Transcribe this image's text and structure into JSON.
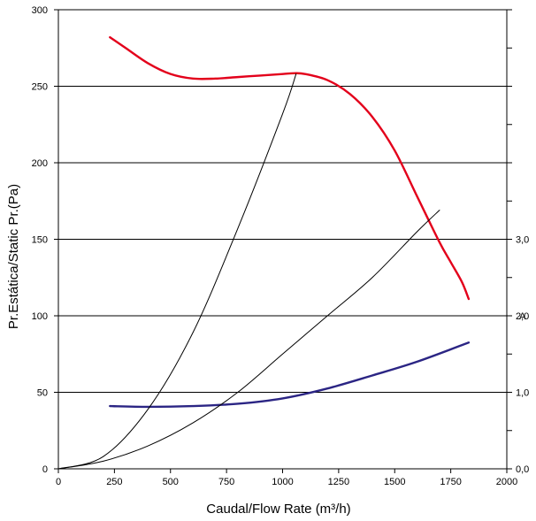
{
  "chart_data": {
    "type": "line",
    "xlabel": "Caudal/Flow Rate (m³/h)",
    "ylabel": "Pr.Estática/Static Pr.(Pa)",
    "xlim": [
      0,
      2000
    ],
    "ylim": [
      0,
      300
    ],
    "x_ticks": [
      0,
      250,
      500,
      750,
      1000,
      1250,
      1500,
      1750,
      2000
    ],
    "y_ticks": [
      0,
      50,
      100,
      150,
      200,
      250,
      300
    ],
    "grid": "horizontal",
    "right_axis": {
      "unit_label": "A",
      "range": [
        0,
        4
      ],
      "ticks": [
        {
          "value": 0,
          "label": "0,0"
        },
        {
          "value": 1,
          "label": "1,0"
        },
        {
          "value": 2,
          "label": "2,0"
        },
        {
          "value": 3,
          "label": "3,0"
        }
      ]
    },
    "series": [
      {
        "axis": "left",
        "color": "#e3001b",
        "x": [
          230,
          300,
          400,
          500,
          600,
          700,
          800,
          900,
          1000,
          1050,
          1100,
          1200,
          1300,
          1400,
          1500,
          1600,
          1700,
          1750,
          1800,
          1830
        ],
        "y": [
          282,
          275,
          265,
          258,
          255,
          255,
          256,
          257,
          258,
          258.5,
          258,
          254,
          245,
          230,
          208,
          178,
          148,
          135,
          122,
          111
        ]
      },
      {
        "axis": "right",
        "color": "#2b2584",
        "x": [
          230,
          400,
          600,
          800,
          1000,
          1200,
          1400,
          1600,
          1830
        ],
        "y": [
          0.82,
          0.81,
          0.82,
          0.85,
          0.92,
          1.05,
          1.22,
          1.4,
          1.65
        ]
      },
      {
        "axis": "left",
        "color": "#000000",
        "x": [
          0,
          200,
          400,
          600,
          800,
          1000,
          1060
        ],
        "y": [
          0,
          8,
          39,
          89,
          157,
          232,
          258
        ]
      },
      {
        "axis": "left",
        "color": "#000000",
        "x": [
          0,
          200,
          400,
          600,
          800,
          1000,
          1200,
          1400,
          1600,
          1700
        ],
        "y": [
          0,
          5,
          15,
          30,
          50,
          75,
          100,
          125,
          155,
          169
        ]
      }
    ]
  }
}
